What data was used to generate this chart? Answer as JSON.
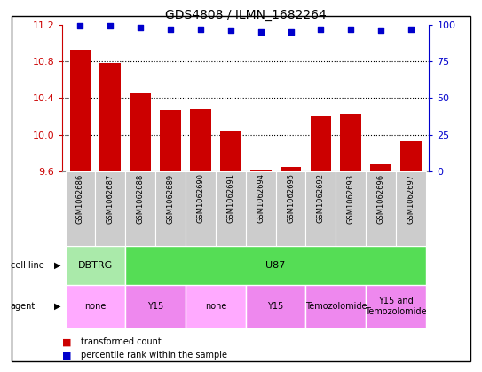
{
  "title": "GDS4808 / ILMN_1682264",
  "samples": [
    "GSM1062686",
    "GSM1062687",
    "GSM1062688",
    "GSM1062689",
    "GSM1062690",
    "GSM1062691",
    "GSM1062694",
    "GSM1062695",
    "GSM1062692",
    "GSM1062693",
    "GSM1062696",
    "GSM1062697"
  ],
  "transformed_counts": [
    10.93,
    10.78,
    10.45,
    10.27,
    10.28,
    10.03,
    9.62,
    9.65,
    10.2,
    10.23,
    9.68,
    9.93
  ],
  "percentile_ranks": [
    99,
    99,
    98,
    97,
    97,
    96,
    95,
    95,
    97,
    97,
    96,
    97
  ],
  "ylim_left": [
    9.6,
    11.2
  ],
  "ylim_right": [
    0,
    100
  ],
  "yticks_left": [
    9.6,
    10.0,
    10.4,
    10.8,
    11.2
  ],
  "yticks_right": [
    0,
    25,
    50,
    75,
    100
  ],
  "bar_color": "#cc0000",
  "dot_color": "#0000cc",
  "cell_line_groups": [
    {
      "label": "DBTRG",
      "start": 0,
      "end": 2,
      "color": "#aaeaaa"
    },
    {
      "label": "U87",
      "start": 2,
      "end": 12,
      "color": "#55dd55"
    }
  ],
  "agent_groups": [
    {
      "label": "none",
      "start": 0,
      "end": 2,
      "color": "#ffaaff"
    },
    {
      "label": "Y15",
      "start": 2,
      "end": 4,
      "color": "#ee88ee"
    },
    {
      "label": "none",
      "start": 4,
      "end": 6,
      "color": "#ffaaff"
    },
    {
      "label": "Y15",
      "start": 6,
      "end": 8,
      "color": "#ee88ee"
    },
    {
      "label": "Temozolomide",
      "start": 8,
      "end": 10,
      "color": "#ee88ee"
    },
    {
      "label": "Y15 and\nTemozolomide",
      "start": 10,
      "end": 12,
      "color": "#ee88ee"
    }
  ],
  "legend_items": [
    {
      "label": "transformed count",
      "color": "#cc0000"
    },
    {
      "label": "percentile rank within the sample",
      "color": "#0000cc"
    }
  ],
  "background_color": "#ffffff",
  "left_axis_color": "#cc0000",
  "right_axis_color": "#0000cc",
  "sample_bg_color": "#cccccc",
  "border_color": "#000000"
}
